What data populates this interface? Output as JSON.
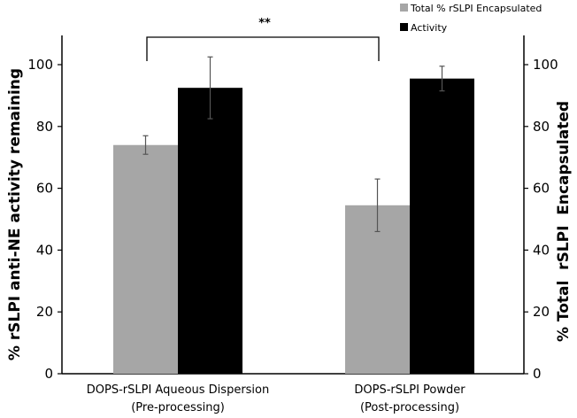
{
  "chart_data": {
    "type": "bar",
    "categories": [
      [
        "DOPS-rSLPI Aqueous Dispersion",
        "(Pre-processing)"
      ],
      [
        "DOPS-rSLPI Powder",
        "(Post-processing)"
      ]
    ],
    "series": [
      {
        "name": "Total % rSLPI Encapsulated",
        "axis": "right",
        "color": "#a6a6a6",
        "values": [
          74,
          54.5
        ],
        "errors": [
          3,
          8.5
        ]
      },
      {
        "name": "Activity",
        "axis": "left",
        "color": "#000000",
        "values": [
          92.5,
          95.5
        ],
        "errors": [
          10,
          4
        ]
      }
    ],
    "ylabel": "% rSLPI anti-NE activity remaining",
    "ylabel_right": "% Total  rSLPI  Encapsulated",
    "ylim": [
      0,
      100
    ],
    "yticks": [
      0,
      20,
      40,
      60,
      80,
      100
    ],
    "ylim_right": [
      0,
      100
    ],
    "yticks_right": [
      0,
      20,
      40,
      60,
      80,
      100
    ],
    "grid": false,
    "legend_position": "top-right",
    "annotation": "**"
  }
}
